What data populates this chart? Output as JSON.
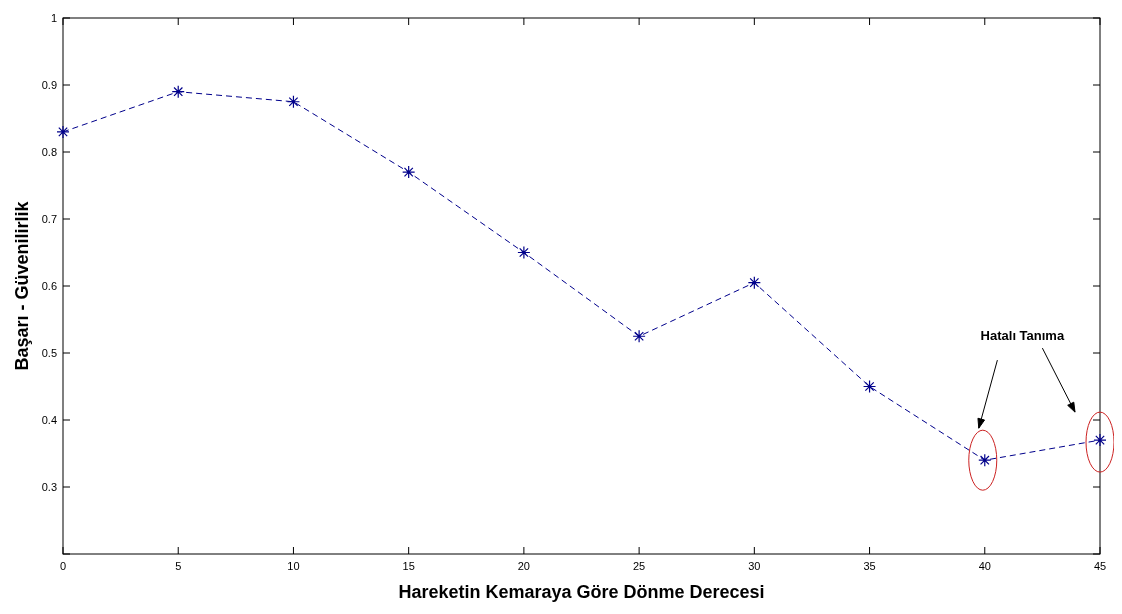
{
  "chart_data": {
    "type": "line",
    "xlabel": "Hareketin Kemaraya Göre Dönme Derecesi",
    "ylabel": "Başarı - Güvenilirlik",
    "x": [
      0,
      5,
      10,
      15,
      20,
      25,
      30,
      35,
      40,
      45
    ],
    "series": [
      {
        "color": "#00008b",
        "values": [
          0.83,
          0.89,
          0.875,
          0.77,
          0.65,
          0.525,
          0.605,
          0.45,
          0.34,
          0.37
        ]
      }
    ],
    "xlim": [
      0,
      45
    ],
    "xticks": [
      0,
      5,
      10,
      15,
      20,
      25,
      30,
      35,
      40,
      45
    ],
    "ylim": [
      0.2,
      1
    ],
    "yticks": [
      {
        "value": 0.2,
        "label": null
      },
      0.3,
      0.4,
      0.5,
      0.6,
      0.7,
      0.8,
      0.9,
      1
    ],
    "marker": "cross",
    "line_style": "dashed",
    "grid": false,
    "annotations": [
      "Hatalı Tanıma"
    ]
  }
}
